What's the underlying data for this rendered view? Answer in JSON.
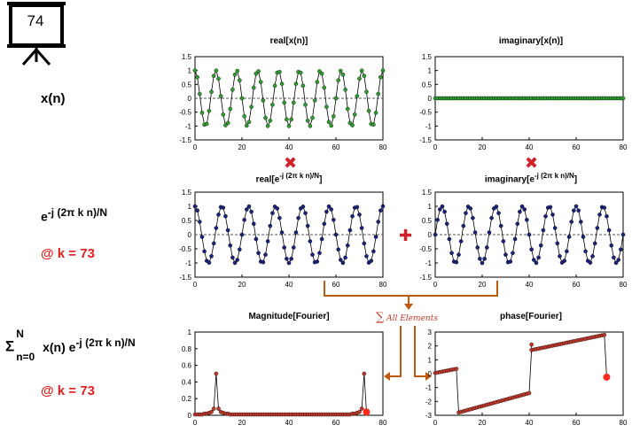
{
  "slide_number": "74",
  "left_labels": {
    "xn": "x(n)",
    "exp_base": "e",
    "exp_power": "-j (2π k n)/N",
    "k_at": "@ k = 73",
    "sum_sym": "Σ",
    "sum_upper": "N",
    "sum_lower": "n=0",
    "sum_term": "x(n) e",
    "sum_power": "-j (2π k n)/N",
    "k_at2": "@ k = 73"
  },
  "operators": {
    "multiply": "✖",
    "add": "✚"
  },
  "annotation": {
    "sum_symbol": "∑",
    "sum_text": "All Elements"
  },
  "plots": {
    "real_x": {
      "title": "real[x(n)]"
    },
    "imag_x": {
      "title": "imaginary[x(n)]"
    },
    "real_e": {
      "title_pre": "real[e",
      "title_sup": "-j (2π k n)/N",
      "title_post": "]"
    },
    "imag_e": {
      "title_pre": "imaginary[e",
      "title_sup": "-j (2π k n)/N",
      "title_post": "]"
    },
    "mag": {
      "title": "Magnitude[Fourier]"
    },
    "phase": {
      "title": "phase[Fourier]"
    }
  },
  "chart_data": [
    {
      "type": "line",
      "name": "real[x(n)]",
      "xlim": [
        0,
        80
      ],
      "ylim": [
        -1.5,
        1.5
      ],
      "xticks": [
        0,
        20,
        40,
        60,
        80
      ],
      "yticks": [
        1.5,
        1,
        0.5,
        0,
        -0.5,
        -1,
        -1.5
      ],
      "signal": "cos(2π·9·n/80)",
      "n": [
        0,
        80
      ],
      "marker_color": "#2e9e2e"
    },
    {
      "type": "line",
      "name": "imaginary[x(n)]",
      "xlim": [
        0,
        80
      ],
      "ylim": [
        -1.5,
        1.5
      ],
      "xticks": [
        0,
        20,
        40,
        60,
        80
      ],
      "yticks": [
        1.5,
        1,
        0.5,
        0,
        -0.5,
        -1,
        -1.5
      ],
      "signal": "0",
      "n": [
        0,
        80
      ],
      "marker_color": "#2e9e2e"
    },
    {
      "type": "line",
      "name": "real[e^-j(2πkn)/N]",
      "xlim": [
        0,
        80
      ],
      "ylim": [
        -1.5,
        1.5
      ],
      "xticks": [
        0,
        20,
        40,
        60,
        80
      ],
      "yticks": [
        1.5,
        1,
        0.5,
        0,
        -0.5,
        -1,
        -1.5
      ],
      "signal": "cos(2π·73·n/80)",
      "n": [
        0,
        80
      ],
      "marker_color": "#1a237e"
    },
    {
      "type": "line",
      "name": "imaginary[e^-j(2πkn)/N]",
      "xlim": [
        0,
        80
      ],
      "ylim": [
        -1.5,
        1.5
      ],
      "xticks": [
        0,
        20,
        40,
        60,
        80
      ],
      "yticks": [
        1.5,
        1,
        0.5,
        0,
        -0.5,
        -1,
        -1.5
      ],
      "signal": "-sin(2π·73·n/80)",
      "n": [
        0,
        80
      ],
      "marker_color": "#1a237e"
    },
    {
      "type": "line",
      "name": "Magnitude[Fourier]",
      "xlim": [
        0,
        80
      ],
      "ylim": [
        0,
        1
      ],
      "xticks": [
        0,
        20,
        40,
        60,
        80
      ],
      "yticks": [
        1,
        0.8,
        0.6,
        0.4,
        0.2,
        0
      ],
      "x": [
        0,
        1,
        2,
        3,
        4,
        5,
        6,
        7,
        8,
        9,
        10,
        11,
        12,
        13,
        14,
        15,
        16,
        17,
        18,
        19,
        20,
        21,
        22,
        23,
        24,
        25,
        26,
        27,
        28,
        29,
        30,
        31,
        32,
        33,
        34,
        35,
        36,
        37,
        38,
        39,
        40,
        41,
        42,
        43,
        44,
        45,
        46,
        47,
        48,
        49,
        50,
        51,
        52,
        53,
        54,
        55,
        56,
        57,
        58,
        59,
        60,
        61,
        62,
        63,
        64,
        65,
        66,
        67,
        68,
        69,
        70,
        71,
        72,
        73
      ],
      "y": [
        0.01,
        0.01,
        0.01,
        0.01,
        0.02,
        0.02,
        0.03,
        0.04,
        0.08,
        0.5,
        0.08,
        0.04,
        0.03,
        0.02,
        0.02,
        0.01,
        0.01,
        0.01,
        0.01,
        0.01,
        0.01,
        0.01,
        0.01,
        0.01,
        0.01,
        0.01,
        0.01,
        0.01,
        0.01,
        0.01,
        0.01,
        0.01,
        0.01,
        0.01,
        0.01,
        0.01,
        0.01,
        0.01,
        0.01,
        0.01,
        0.01,
        0.01,
        0.01,
        0.01,
        0.01,
        0.01,
        0.01,
        0.01,
        0.01,
        0.01,
        0.01,
        0.01,
        0.01,
        0.01,
        0.01,
        0.01,
        0.01,
        0.01,
        0.01,
        0.01,
        0.01,
        0.01,
        0.01,
        0.01,
        0.01,
        0.01,
        0.01,
        0.02,
        0.02,
        0.03,
        0.04,
        0.08,
        0.5,
        0.04
      ],
      "highlight": {
        "x": 73,
        "y": 0.04
      }
    },
    {
      "type": "line",
      "name": "phase[Fourier]",
      "xlim": [
        0,
        80
      ],
      "ylim": [
        -3,
        3
      ],
      "xticks": [
        0,
        20,
        40,
        60,
        80
      ],
      "yticks": [
        3,
        2,
        1,
        0,
        -1,
        -2,
        -3
      ],
      "segments": [
        {
          "x": [
            0,
            9
          ],
          "y": [
            0.05,
            0.35
          ]
        },
        {
          "x": [
            10,
            40
          ],
          "y": [
            -2.8,
            -1.4
          ]
        },
        {
          "x": [
            41,
            72
          ],
          "y": [
            1.7,
            2.8
          ]
        }
      ],
      "outliers": [
        {
          "x": 41,
          "y": 2.1
        }
      ],
      "highlight": {
        "x": 73,
        "y": -0.25
      }
    }
  ]
}
